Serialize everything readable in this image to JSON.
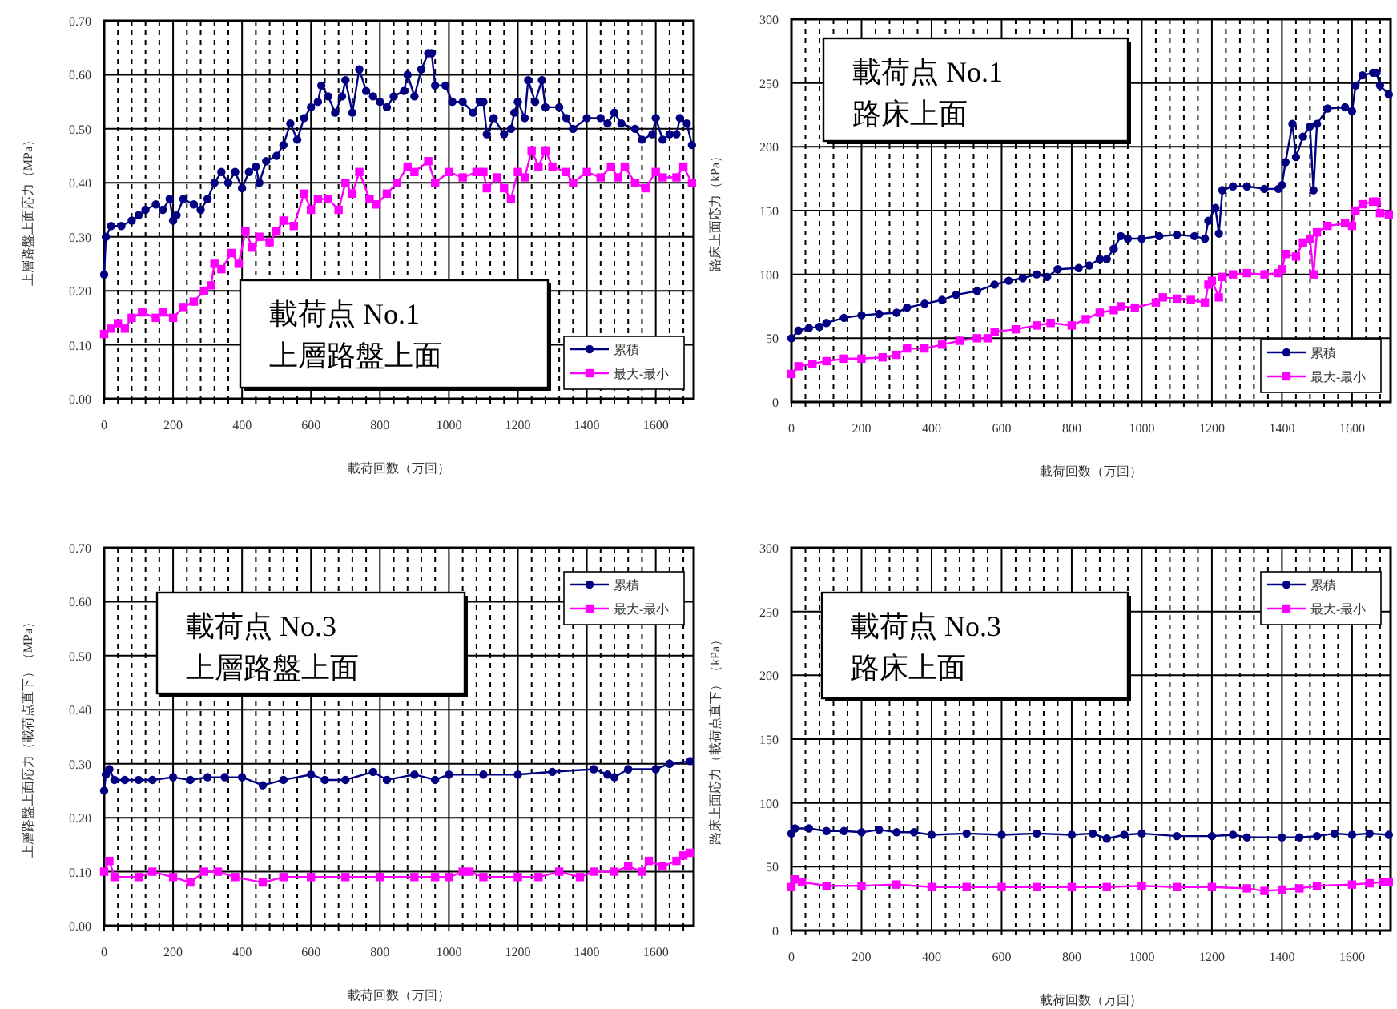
{
  "chart_data": [
    {
      "type": "line",
      "title": "載荷点 No.1",
      "subtitle": "上層路盤上面",
      "xlabel": "載荷回数（万回）",
      "ylabel": "上層路盤上面応力（MPa）",
      "xlim": [
        0,
        1710
      ],
      "ylim": [
        0,
        0.7
      ],
      "xticks": [
        0,
        {
          "value": 40,
          "label": null
        },
        {
          "value": 80,
          "label": null
        },
        {
          "value": 120,
          "label": null
        },
        {
          "value": 160,
          "label": null
        },
        200,
        {
          "value": 240,
          "label": null
        },
        {
          "value": 280,
          "label": null
        },
        {
          "value": 320,
          "label": null
        },
        {
          "value": 360,
          "label": null
        },
        400,
        {
          "value": 440,
          "label": null
        },
        {
          "value": 480,
          "label": null
        },
        {
          "value": 520,
          "label": null
        },
        {
          "value": 560,
          "label": null
        },
        600,
        {
          "value": 640,
          "label": null
        },
        {
          "value": 680,
          "label": null
        },
        {
          "value": 720,
          "label": null
        },
        {
          "value": 760,
          "label": null
        },
        800,
        {
          "value": 840,
          "label": null
        },
        {
          "value": 880,
          "label": null
        },
        {
          "value": 920,
          "label": null
        },
        {
          "value": 960,
          "label": null
        },
        1000,
        {
          "value": 1040,
          "label": null
        },
        {
          "value": 1080,
          "label": null
        },
        {
          "value": 1120,
          "label": null
        },
        {
          "value": 1160,
          "label": null
        },
        1200,
        {
          "value": 1240,
          "label": null
        },
        {
          "value": 1280,
          "label": null
        },
        {
          "value": 1320,
          "label": null
        },
        {
          "value": 1360,
          "label": null
        },
        1400,
        {
          "value": 1440,
          "label": null
        },
        {
          "value": 1480,
          "label": null
        },
        {
          "value": 1520,
          "label": null
        },
        {
          "value": 1560,
          "label": null
        },
        1600,
        {
          "value": 1640,
          "label": null
        },
        {
          "value": 1680,
          "label": null
        }
      ],
      "yticks": [
        {
          "value": 0,
          "label": "0.00"
        },
        {
          "value": 0.1,
          "label": "0.10"
        },
        {
          "value": 0.2,
          "label": "0.20"
        },
        {
          "value": 0.3,
          "label": "0.30"
        },
        {
          "value": 0.4,
          "label": "0.40"
        },
        {
          "value": 0.5,
          "label": "0.50"
        },
        {
          "value": 0.6,
          "label": "0.60"
        },
        {
          "value": 0.7,
          "label": "0.70"
        }
      ],
      "grid": true,
      "legend": "bottom right",
      "line_style": "solid",
      "series": [
        {
          "name": "累積",
          "color": "#000080",
          "marker": "circle",
          "x": [
            0,
            5,
            20,
            50,
            80,
            100,
            120,
            150,
            170,
            190,
            200,
            210,
            230,
            260,
            280,
            300,
            320,
            340,
            360,
            380,
            400,
            420,
            440,
            450,
            470,
            500,
            520,
            540,
            560,
            580,
            600,
            620,
            630,
            650,
            670,
            690,
            700,
            720,
            740,
            760,
            780,
            800,
            820,
            840,
            870,
            880,
            900,
            920,
            940,
            950,
            960,
            990,
            1010,
            1040,
            1070,
            1090,
            1100,
            1110,
            1130,
            1160,
            1180,
            1190,
            1200,
            1220,
            1230,
            1250,
            1270,
            1280,
            1320,
            1340,
            1360,
            1400,
            1440,
            1460,
            1480,
            1500,
            1540,
            1560,
            1590,
            1600,
            1620,
            1640,
            1660,
            1670,
            1690,
            1705
          ],
          "values": [
            0.23,
            0.3,
            0.32,
            0.32,
            0.33,
            0.34,
            0.35,
            0.36,
            0.35,
            0.37,
            0.33,
            0.34,
            0.37,
            0.36,
            0.35,
            0.37,
            0.4,
            0.42,
            0.4,
            0.42,
            0.39,
            0.42,
            0.43,
            0.4,
            0.44,
            0.45,
            0.47,
            0.51,
            0.48,
            0.52,
            0.54,
            0.55,
            0.58,
            0.56,
            0.53,
            0.56,
            0.59,
            0.53,
            0.61,
            0.57,
            0.56,
            0.55,
            0.54,
            0.56,
            0.57,
            0.6,
            0.56,
            0.61,
            0.64,
            0.64,
            0.58,
            0.58,
            0.55,
            0.55,
            0.53,
            0.55,
            0.55,
            0.49,
            0.52,
            0.49,
            0.5,
            0.53,
            0.55,
            0.52,
            0.59,
            0.55,
            0.59,
            0.54,
            0.54,
            0.52,
            0.5,
            0.52,
            0.52,
            0.51,
            0.53,
            0.51,
            0.5,
            0.48,
            0.49,
            0.52,
            0.48,
            0.49,
            0.49,
            0.52,
            0.51,
            0.47
          ]
        },
        {
          "name": "最大-最小",
          "color": "#ff00ff",
          "marker": "square",
          "x": [
            0,
            20,
            40,
            60,
            80,
            110,
            150,
            170,
            200,
            230,
            260,
            290,
            310,
            320,
            340,
            370,
            390,
            410,
            430,
            450,
            480,
            500,
            520,
            550,
            580,
            600,
            620,
            650,
            680,
            700,
            720,
            740,
            770,
            790,
            820,
            850,
            880,
            900,
            940,
            960,
            1000,
            1040,
            1080,
            1100,
            1110,
            1140,
            1160,
            1180,
            1200,
            1220,
            1240,
            1260,
            1280,
            1300,
            1340,
            1360,
            1400,
            1440,
            1470,
            1490,
            1510,
            1540,
            1570,
            1600,
            1620,
            1660,
            1680,
            1705
          ],
          "values": [
            0.12,
            0.13,
            0.14,
            0.13,
            0.15,
            0.16,
            0.15,
            0.16,
            0.15,
            0.17,
            0.18,
            0.2,
            0.21,
            0.25,
            0.24,
            0.27,
            0.25,
            0.31,
            0.28,
            0.3,
            0.29,
            0.31,
            0.33,
            0.32,
            0.38,
            0.35,
            0.37,
            0.37,
            0.35,
            0.4,
            0.38,
            0.42,
            0.37,
            0.36,
            0.38,
            0.4,
            0.43,
            0.42,
            0.44,
            0.4,
            0.42,
            0.41,
            0.42,
            0.42,
            0.39,
            0.41,
            0.39,
            0.37,
            0.42,
            0.41,
            0.46,
            0.43,
            0.46,
            0.43,
            0.42,
            0.4,
            0.42,
            0.41,
            0.43,
            0.41,
            0.43,
            0.4,
            0.39,
            0.42,
            0.41,
            0.41,
            0.43,
            0.4
          ]
        }
      ]
    },
    {
      "type": "line",
      "title": "載荷点 No.1",
      "subtitle": "路床上面",
      "xlabel": "載荷回数（万回）",
      "ylabel": "路床上面応力（kPa）",
      "xlim": [
        0,
        1710
      ],
      "ylim": [
        0,
        300
      ],
      "xticks": [
        0,
        {
          "value": 40,
          "label": null
        },
        {
          "value": 80,
          "label": null
        },
        {
          "value": 120,
          "label": null
        },
        {
          "value": 160,
          "label": null
        },
        200,
        {
          "value": 240,
          "label": null
        },
        {
          "value": 280,
          "label": null
        },
        {
          "value": 320,
          "label": null
        },
        {
          "value": 360,
          "label": null
        },
        400,
        {
          "value": 440,
          "label": null
        },
        {
          "value": 480,
          "label": null
        },
        {
          "value": 520,
          "label": null
        },
        {
          "value": 560,
          "label": null
        },
        600,
        {
          "value": 640,
          "label": null
        },
        {
          "value": 680,
          "label": null
        },
        {
          "value": 720,
          "label": null
        },
        {
          "value": 760,
          "label": null
        },
        800,
        {
          "value": 840,
          "label": null
        },
        {
          "value": 880,
          "label": null
        },
        {
          "value": 920,
          "label": null
        },
        {
          "value": 960,
          "label": null
        },
        1000,
        {
          "value": 1040,
          "label": null
        },
        {
          "value": 1080,
          "label": null
        },
        {
          "value": 1120,
          "label": null
        },
        {
          "value": 1160,
          "label": null
        },
        1200,
        {
          "value": 1240,
          "label": null
        },
        {
          "value": 1280,
          "label": null
        },
        {
          "value": 1320,
          "label": null
        },
        {
          "value": 1360,
          "label": null
        },
        1400,
        {
          "value": 1440,
          "label": null
        },
        {
          "value": 1480,
          "label": null
        },
        {
          "value": 1520,
          "label": null
        },
        {
          "value": 1560,
          "label": null
        },
        1600,
        {
          "value": 1640,
          "label": null
        },
        {
          "value": 1680,
          "label": null
        }
      ],
      "yticks": [
        0,
        50,
        100,
        150,
        200,
        250,
        300
      ],
      "grid": true,
      "legend": "bottom right",
      "line_style": "solid",
      "series": [
        {
          "name": "累積",
          "color": "#000080",
          "marker": "circle",
          "x": [
            0,
            20,
            50,
            80,
            100,
            150,
            200,
            250,
            300,
            330,
            380,
            430,
            470,
            530,
            580,
            620,
            660,
            700,
            730,
            760,
            820,
            850,
            880,
            900,
            920,
            940,
            960,
            1000,
            1050,
            1100,
            1150,
            1180,
            1190,
            1210,
            1220,
            1230,
            1260,
            1300,
            1350,
            1390,
            1400,
            1410,
            1430,
            1440,
            1460,
            1480,
            1490,
            1500,
            1530,
            1580,
            1600,
            1610,
            1630,
            1660,
            1670,
            1680,
            1705
          ],
          "values": [
            50,
            56,
            58,
            59,
            62,
            66,
            68,
            69,
            70,
            74,
            77,
            80,
            84,
            87,
            92,
            95,
            97,
            100,
            98,
            104,
            105,
            107,
            112,
            112,
            120,
            130,
            128,
            128,
            130,
            131,
            130,
            128,
            142,
            152,
            132,
            166,
            169,
            169,
            167,
            167,
            170,
            188,
            218,
            192,
            208,
            216,
            166,
            218,
            230,
            231,
            228,
            248,
            256,
            258,
            258,
            248,
            241
          ]
        },
        {
          "name": "最大-最小",
          "color": "#ff00ff",
          "marker": "square",
          "x": [
            0,
            20,
            60,
            100,
            150,
            200,
            260,
            300,
            330,
            380,
            430,
            480,
            530,
            560,
            580,
            640,
            700,
            740,
            800,
            840,
            880,
            920,
            940,
            980,
            1040,
            1060,
            1100,
            1140,
            1180,
            1190,
            1200,
            1220,
            1230,
            1260,
            1300,
            1350,
            1390,
            1400,
            1410,
            1440,
            1460,
            1480,
            1490,
            1500,
            1530,
            1580,
            1600,
            1610,
            1630,
            1660,
            1670,
            1680,
            1705
          ],
          "values": [
            22,
            28,
            30,
            32,
            34,
            34,
            35,
            37,
            42,
            42,
            45,
            48,
            50,
            50,
            55,
            57,
            60,
            62,
            60,
            65,
            70,
            72,
            75,
            74,
            78,
            82,
            81,
            80,
            78,
            92,
            95,
            82,
            98,
            100,
            101,
            100,
            101,
            104,
            116,
            114,
            125,
            128,
            100,
            133,
            138,
            140,
            138,
            150,
            155,
            157,
            157,
            148,
            147
          ]
        }
      ]
    },
    {
      "type": "line",
      "title": "載荷点 No.3",
      "subtitle": "上層路盤上面",
      "xlabel": "載荷回数（万回）",
      "ylabel": "上層路盤上面応力（載荷点直下）（MPa）",
      "xlim": [
        0,
        1710
      ],
      "ylim": [
        0,
        0.7
      ],
      "xticks": [
        0,
        {
          "value": 40,
          "label": null
        },
        {
          "value": 80,
          "label": null
        },
        {
          "value": 120,
          "label": null
        },
        {
          "value": 160,
          "label": null
        },
        200,
        {
          "value": 240,
          "label": null
        },
        {
          "value": 280,
          "label": null
        },
        {
          "value": 320,
          "label": null
        },
        {
          "value": 360,
          "label": null
        },
        400,
        {
          "value": 440,
          "label": null
        },
        {
          "value": 480,
          "label": null
        },
        {
          "value": 520,
          "label": null
        },
        {
          "value": 560,
          "label": null
        },
        600,
        {
          "value": 640,
          "label": null
        },
        {
          "value": 680,
          "label": null
        },
        {
          "value": 720,
          "label": null
        },
        {
          "value": 760,
          "label": null
        },
        800,
        {
          "value": 840,
          "label": null
        },
        {
          "value": 880,
          "label": null
        },
        {
          "value": 920,
          "label": null
        },
        {
          "value": 960,
          "label": null
        },
        1000,
        {
          "value": 1040,
          "label": null
        },
        {
          "value": 1080,
          "label": null
        },
        {
          "value": 1120,
          "label": null
        },
        {
          "value": 1160,
          "label": null
        },
        1200,
        {
          "value": 1240,
          "label": null
        },
        {
          "value": 1280,
          "label": null
        },
        {
          "value": 1320,
          "label": null
        },
        {
          "value": 1360,
          "label": null
        },
        1400,
        {
          "value": 1440,
          "label": null
        },
        {
          "value": 1480,
          "label": null
        },
        {
          "value": 1520,
          "label": null
        },
        {
          "value": 1560,
          "label": null
        },
        1600,
        {
          "value": 1640,
          "label": null
        },
        {
          "value": 1680,
          "label": null
        }
      ],
      "yticks": [
        {
          "value": 0,
          "label": "0.00"
        },
        {
          "value": 0.1,
          "label": "0.10"
        },
        {
          "value": 0.2,
          "label": "0.20"
        },
        {
          "value": 0.3,
          "label": "0.30"
        },
        {
          "value": 0.4,
          "label": "0.40"
        },
        {
          "value": 0.5,
          "label": "0.50"
        },
        {
          "value": 0.6,
          "label": "0.60"
        },
        {
          "value": 0.7,
          "label": "0.70"
        }
      ],
      "grid": true,
      "legend": "top right",
      "line_style": "solid",
      "series": [
        {
          "name": "累積",
          "color": "#000080",
          "marker": "circle",
          "x": [
            0,
            5,
            15,
            30,
            60,
            100,
            140,
            200,
            250,
            300,
            350,
            400,
            460,
            520,
            600,
            640,
            700,
            780,
            820,
            900,
            960,
            1000,
            1100,
            1200,
            1300,
            1420,
            1460,
            1480,
            1520,
            1600,
            1640,
            1700
          ],
          "values": [
            0.25,
            0.28,
            0.29,
            0.27,
            0.27,
            0.27,
            0.27,
            0.275,
            0.27,
            0.275,
            0.275,
            0.275,
            0.26,
            0.27,
            0.28,
            0.27,
            0.27,
            0.285,
            0.27,
            0.28,
            0.27,
            0.28,
            0.28,
            0.28,
            0.285,
            0.29,
            0.28,
            0.275,
            0.29,
            0.29,
            0.3,
            0.305
          ]
        },
        {
          "name": "最大-最小",
          "color": "#ff00ff",
          "marker": "square",
          "x": [
            0,
            15,
            30,
            100,
            140,
            200,
            250,
            290,
            330,
            380,
            460,
            520,
            600,
            700,
            800,
            900,
            960,
            1000,
            1040,
            1060,
            1100,
            1200,
            1260,
            1320,
            1380,
            1420,
            1480,
            1520,
            1560,
            1580,
            1620,
            1660,
            1680,
            1700
          ],
          "values": [
            0.1,
            0.12,
            0.09,
            0.09,
            0.1,
            0.09,
            0.08,
            0.1,
            0.1,
            0.09,
            0.08,
            0.09,
            0.09,
            0.09,
            0.09,
            0.09,
            0.09,
            0.09,
            0.1,
            0.1,
            0.09,
            0.09,
            0.09,
            0.1,
            0.09,
            0.1,
            0.1,
            0.11,
            0.1,
            0.12,
            0.11,
            0.12,
            0.13,
            0.135
          ]
        }
      ]
    },
    {
      "type": "line",
      "title": "載荷点 No.3",
      "subtitle": "路床上面",
      "xlabel": "載荷回数（万回）",
      "ylabel": "路床上面応力（載荷点直下）（kPa）",
      "xlim": [
        0,
        1710
      ],
      "ylim": [
        0,
        300
      ],
      "xticks": [
        0,
        {
          "value": 40,
          "label": null
        },
        {
          "value": 80,
          "label": null
        },
        {
          "value": 120,
          "label": null
        },
        {
          "value": 160,
          "label": null
        },
        200,
        {
          "value": 240,
          "label": null
        },
        {
          "value": 280,
          "label": null
        },
        {
          "value": 320,
          "label": null
        },
        {
          "value": 360,
          "label": null
        },
        400,
        {
          "value": 440,
          "label": null
        },
        {
          "value": 480,
          "label": null
        },
        {
          "value": 520,
          "label": null
        },
        {
          "value": 560,
          "label": null
        },
        600,
        {
          "value": 640,
          "label": null
        },
        {
          "value": 680,
          "label": null
        },
        {
          "value": 720,
          "label": null
        },
        {
          "value": 760,
          "label": null
        },
        800,
        {
          "value": 840,
          "label": null
        },
        {
          "value": 880,
          "label": null
        },
        {
          "value": 920,
          "label": null
        },
        {
          "value": 960,
          "label": null
        },
        1000,
        {
          "value": 1040,
          "label": null
        },
        {
          "value": 1080,
          "label": null
        },
        {
          "value": 1120,
          "label": null
        },
        {
          "value": 1160,
          "label": null
        },
        1200,
        {
          "value": 1240,
          "label": null
        },
        {
          "value": 1280,
          "label": null
        },
        {
          "value": 1320,
          "label": null
        },
        {
          "value": 1360,
          "label": null
        },
        1400,
        {
          "value": 1440,
          "label": null
        },
        {
          "value": 1480,
          "label": null
        },
        {
          "value": 1520,
          "label": null
        },
        {
          "value": 1560,
          "label": null
        },
        1600,
        {
          "value": 1640,
          "label": null
        },
        {
          "value": 1680,
          "label": null
        }
      ],
      "yticks": [
        0,
        50,
        100,
        150,
        200,
        250,
        300
      ],
      "grid": true,
      "legend": "top right",
      "line_style": "solid",
      "series": [
        {
          "name": "累積",
          "color": "#000080",
          "marker": "circle",
          "x": [
            0,
            10,
            50,
            100,
            150,
            200,
            250,
            300,
            350,
            400,
            500,
            600,
            700,
            800,
            860,
            900,
            950,
            1000,
            1100,
            1200,
            1260,
            1300,
            1400,
            1450,
            1500,
            1550,
            1600,
            1650,
            1705
          ],
          "values": [
            76,
            80,
            80,
            78,
            78,
            77,
            79,
            77,
            77,
            75,
            76,
            75,
            76,
            75,
            76,
            72,
            75,
            76,
            74,
            74,
            75,
            73,
            73,
            73,
            74,
            76,
            75,
            76,
            75
          ]
        },
        {
          "name": "最大-最小",
          "color": "#ff00ff",
          "marker": "square",
          "x": [
            0,
            10,
            30,
            100,
            200,
            300,
            400,
            500,
            600,
            700,
            800,
            900,
            1000,
            1100,
            1200,
            1300,
            1350,
            1400,
            1450,
            1500,
            1600,
            1650,
            1690,
            1705
          ],
          "values": [
            34,
            40,
            38,
            35,
            35,
            36,
            34,
            34,
            34,
            34,
            34,
            34,
            35,
            34,
            34,
            33,
            31,
            32,
            33,
            35,
            36,
            37,
            38,
            38
          ]
        }
      ]
    }
  ]
}
